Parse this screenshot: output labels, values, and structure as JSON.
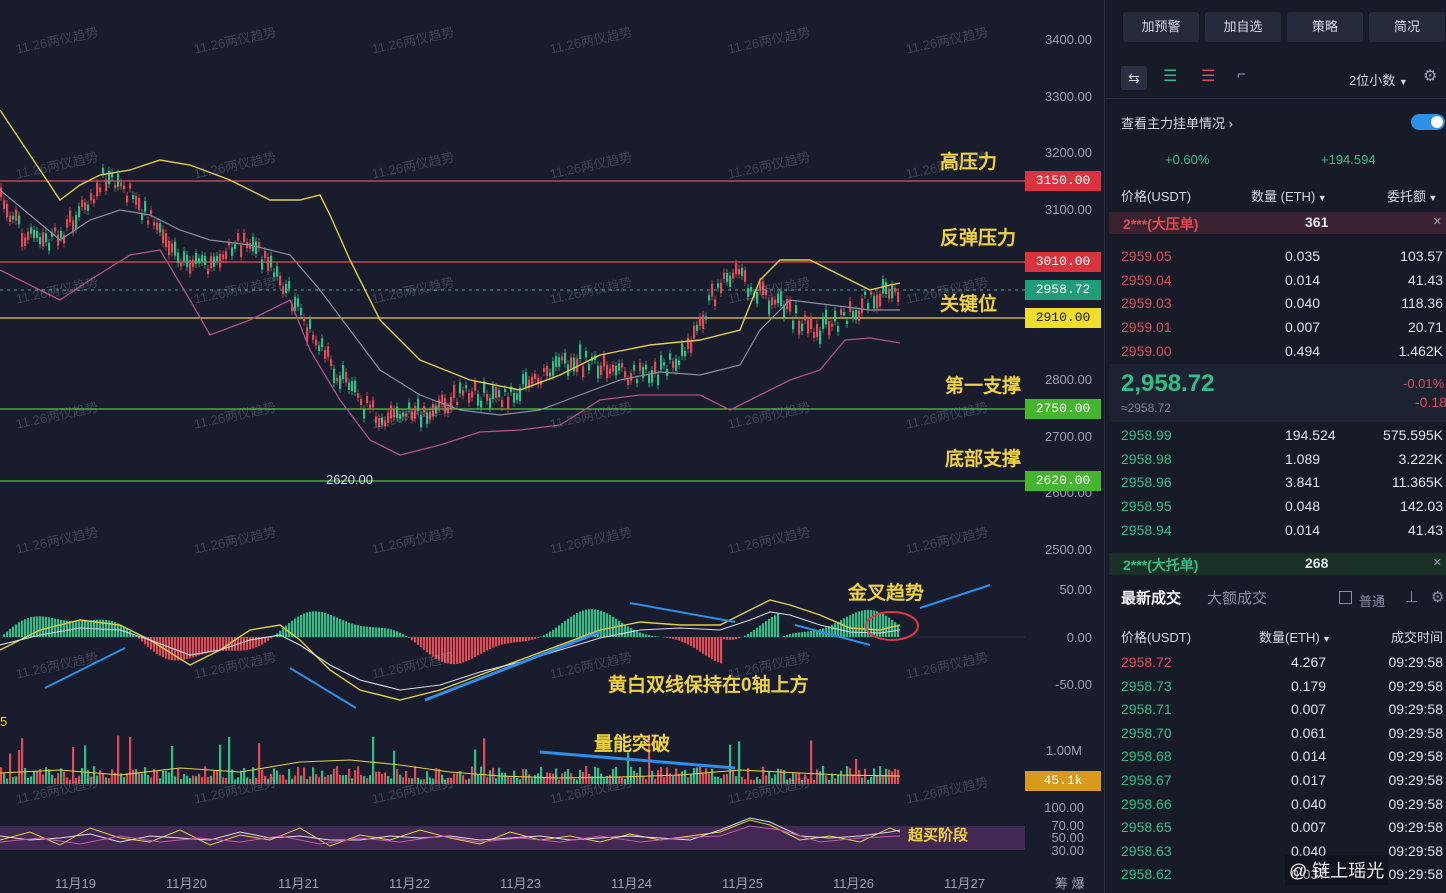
{
  "watermark": "11.26两仪趋势",
  "credit": "@ 链上瑶光",
  "axis_labels": [
    "3400.00",
    "3300.00",
    "3200.00",
    "3100.00",
    "2800.00",
    "2700.00",
    "2600.00",
    "2500.00",
    "50.00",
    "0.00",
    "-50.00",
    "1.00M",
    "100.00",
    "70.00",
    "50.00",
    "30.00"
  ],
  "price_tags": {
    "high": "3150.00",
    "rebound": "3010.00",
    "current": "2958.72",
    "key": "2910.00",
    "support1": "2750.00",
    "bottom": "2620.00",
    "volume": "45.1k"
  },
  "low_marker": "2620.00",
  "annotations": {
    "high_pressure": "高压力",
    "rebound_pressure": "反弹压力",
    "key_level": "关键位",
    "first_support": "第一支撑",
    "bottom_support": "底部支撑",
    "golden_cross": "金叉趋势",
    "macd_note": "黄白双线保持在0轴上方",
    "volume_note": "量能突破",
    "overbought": "超买阶段",
    "left_edge": "5"
  },
  "dates": [
    "11月19",
    "11月20",
    "11月21",
    "11月22",
    "11月23",
    "11月24",
    "11月25",
    "11月26",
    "11月27"
  ],
  "bottom_corner": "筹 爆",
  "side": {
    "buttons": [
      "加预警",
      "加自选",
      "策略",
      "简况"
    ],
    "decimals": "2位小数",
    "depth_link": "查看主力挂单情况",
    "change": "+0.60%",
    "change_abs": "+194.594",
    "ob_headers": {
      "price": "价格(USDT)",
      "qty": "数量 (ETH)",
      "total": "委托额"
    },
    "big_ask": {
      "label": "2***(大压单)",
      "qty": "361"
    },
    "asks": [
      {
        "price": "2959.05",
        "qty": "0.035",
        "total": "103.57"
      },
      {
        "price": "2959.04",
        "qty": "0.014",
        "total": "41.43"
      },
      {
        "price": "2959.03",
        "qty": "0.040",
        "total": "118.36"
      },
      {
        "price": "2959.01",
        "qty": "0.007",
        "total": "20.71"
      },
      {
        "price": "2959.00",
        "qty": "0.494",
        "total": "1.462K"
      }
    ],
    "last_price": "2,958.72",
    "last_sub": "≈2958.72",
    "last_pct": "-0.01%",
    "last_abs": "-0.18",
    "bids": [
      {
        "price": "2958.99",
        "qty": "194.524",
        "total": "575.595K"
      },
      {
        "price": "2958.98",
        "qty": "1.089",
        "total": "3.222K"
      },
      {
        "price": "2958.96",
        "qty": "3.841",
        "total": "11.365K"
      },
      {
        "price": "2958.95",
        "qty": "0.048",
        "total": "142.03"
      },
      {
        "price": "2958.94",
        "qty": "0.014",
        "total": "41.43"
      }
    ],
    "big_bid": {
      "label": "2***(大托单)",
      "qty": "268"
    },
    "trade_tabs": [
      "最新成交",
      "大额成交"
    ],
    "trade_mode": "普通",
    "trade_headers": {
      "price": "价格(USDT)",
      "qty": "数量(ETH)",
      "time": "成交时间"
    },
    "trades": [
      {
        "price": "2958.72",
        "qty": "4.267",
        "time": "09:29:58",
        "side": "red"
      },
      {
        "price": "2958.73",
        "qty": "0.179",
        "time": "09:29:58",
        "side": "green"
      },
      {
        "price": "2958.71",
        "qty": "0.007",
        "time": "09:29:58",
        "side": "green"
      },
      {
        "price": "2958.70",
        "qty": "0.061",
        "time": "09:29:58",
        "side": "green"
      },
      {
        "price": "2958.68",
        "qty": "0.014",
        "time": "09:29:58",
        "side": "green"
      },
      {
        "price": "2958.67",
        "qty": "0.017",
        "time": "09:29:58",
        "side": "green"
      },
      {
        "price": "2958.66",
        "qty": "0.040",
        "time": "09:29:58",
        "side": "green"
      },
      {
        "price": "2958.65",
        "qty": "0.007",
        "time": "09:29:58",
        "side": "green"
      },
      {
        "price": "2958.63",
        "qty": "0.040",
        "time": "09:29:58",
        "side": "green"
      },
      {
        "price": "2958.62",
        "qty": "0.037",
        "time": "09:29:58",
        "side": "green"
      }
    ]
  },
  "colors": {
    "up": "#2fbf86",
    "down": "#e04b55",
    "accent": "#f0d23c",
    "bg": "#181c2c"
  }
}
